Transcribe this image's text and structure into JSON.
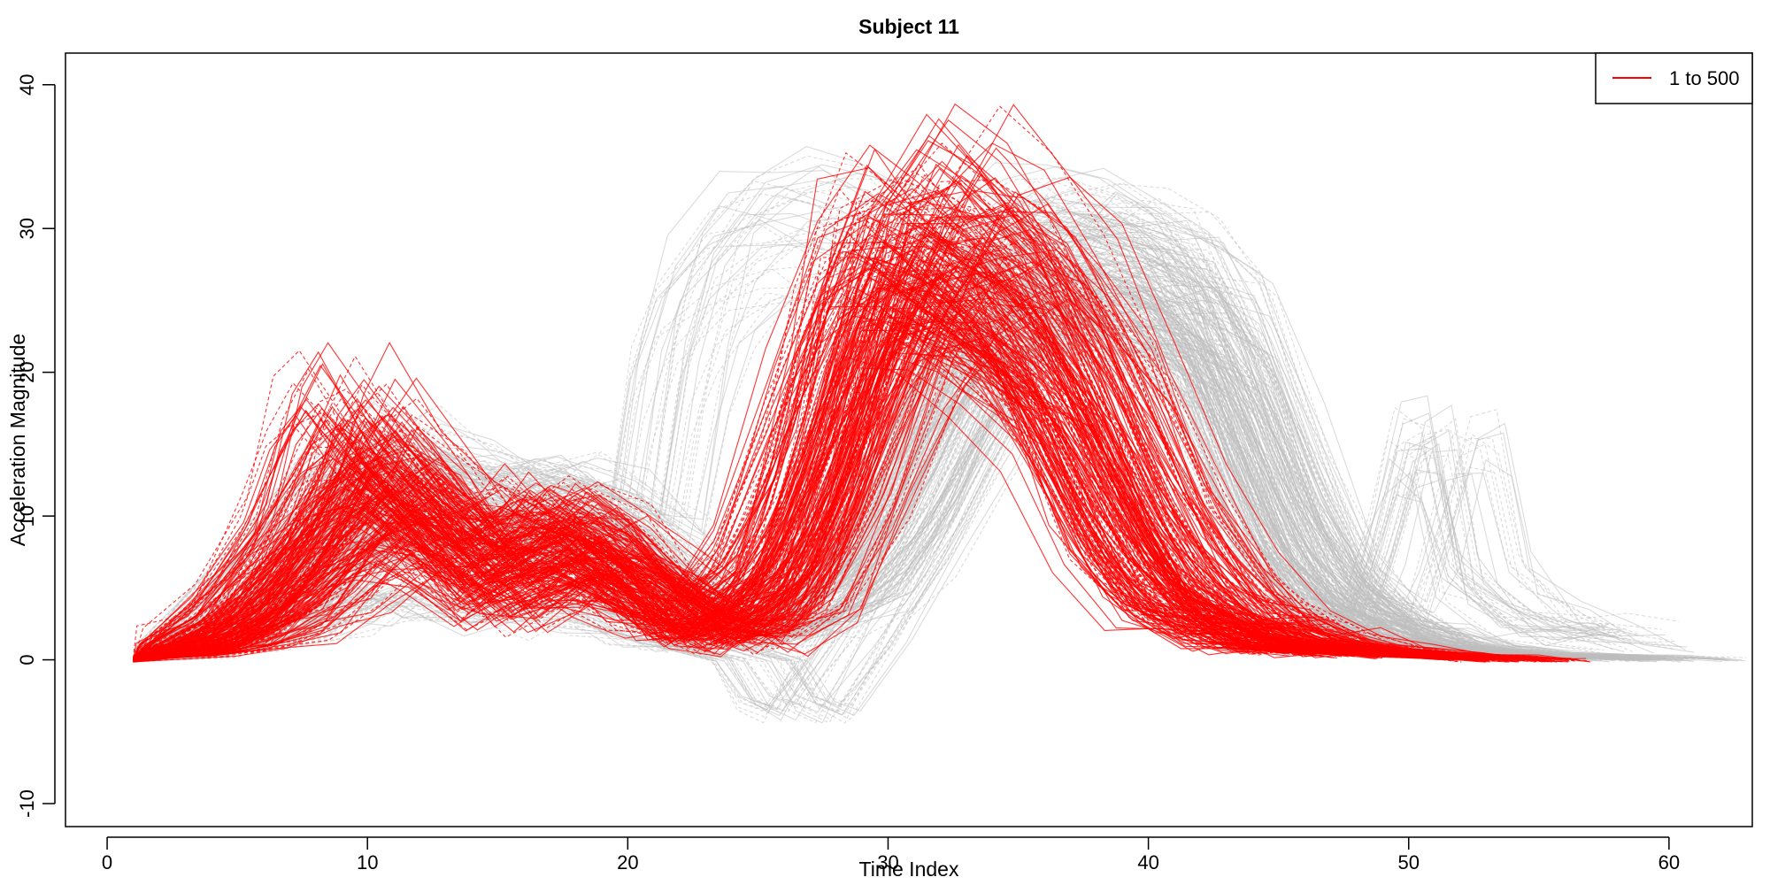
{
  "chart_data": {
    "type": "line",
    "title": "Subject 11",
    "xlabel": "Time Index",
    "ylabel": "Acceleration Magnitude",
    "xlim": [
      -1.6,
      63.2
    ],
    "ylim": [
      -11.6,
      42.2
    ],
    "x_ticks": [
      0,
      10,
      20,
      30,
      40,
      50,
      60
    ],
    "y_ticks": [
      -10,
      0,
      10,
      20,
      30,
      40
    ],
    "grid": false,
    "legend": {
      "placement": "top-right",
      "entries": [
        {
          "label": "1 to 500",
          "color": "#ff0000"
        }
      ]
    },
    "colors": {
      "highlight": "#ff0000",
      "background": "#bebebe"
    },
    "series_groups": [
      {
        "name": "1 to 500",
        "color": "#ff0000",
        "count": 500,
        "representative_curves": [
          {
            "x": [
              1,
              3,
              5,
              7,
              9,
              10,
              12,
              14,
              16,
              17,
              19,
              21,
              22,
              24,
              26,
              28,
              30,
              32,
              34,
              36,
              38,
              40,
              42,
              44,
              46,
              48,
              50,
              52,
              54
            ],
            "y": [
              0,
              0.8,
              2.5,
              6,
              12,
              15,
              11,
              7,
              9,
              10,
              8,
              4,
              2,
              3,
              6,
              15,
              26,
              25,
              22,
              18,
              9,
              4,
              2.5,
              1.5,
              1,
              0.7,
              0.4,
              0.2,
              0
            ]
          },
          {
            "x": [
              1,
              3,
              5,
              7,
              9,
              10,
              12,
              14,
              16,
              17,
              19,
              21,
              22,
              24,
              26,
              28,
              29,
              31,
              33,
              35,
              37,
              39,
              41,
              43,
              45,
              47,
              49
            ],
            "y": [
              0,
              1,
              3,
              8,
              15,
              17,
              13,
              9,
              10,
              11,
              9,
              5,
              3,
              2,
              5,
              18,
              28,
              29,
              26,
              22,
              15,
              8,
              4,
              2,
              1.5,
              0.8,
              0.3
            ]
          },
          {
            "x": [
              1,
              3,
              5,
              7,
              9,
              11,
              13,
              15,
              17,
              19,
              21,
              23,
              25,
              27,
              29,
              31,
              33,
              35,
              37,
              39,
              41,
              43,
              45,
              47,
              49,
              51,
              53
            ],
            "y": [
              0,
              0.5,
              1.5,
              4,
              8,
              11,
              9,
              5,
              7,
              6,
              4,
              2,
              3,
              8,
              18,
              27,
              28,
              25,
              20,
              12,
              6,
              3,
              2,
              1,
              0.6,
              0.3,
              0
            ]
          },
          {
            "x": [
              1,
              3,
              5,
              7,
              8,
              9,
              11,
              13,
              15,
              17,
              19,
              21,
              23,
              25,
              27,
              28,
              30,
              32,
              34,
              36,
              38,
              40,
              42,
              44,
              46,
              48
            ],
            "y": [
              0,
              1.5,
              4,
              10,
              16,
              19,
              14,
              10,
              8,
              11,
              9,
              6,
              4,
              6,
              14,
              22,
              30,
              27,
              24,
              20,
              13,
              6,
              3,
              1.5,
              0.8,
              0.3
            ]
          },
          {
            "x": [
              1,
              3,
              5,
              7,
              9,
              11,
              13,
              15,
              17,
              19,
              21,
              23,
              25,
              27,
              29,
              31,
              33,
              35,
              37,
              39,
              41,
              43,
              45,
              47,
              49,
              51,
              53,
              55
            ],
            "y": [
              0,
              0.4,
              1,
              2.5,
              5,
              8,
              6,
              3,
              5,
              7,
              5,
              2,
              1.5,
              4,
              12,
              22,
              28,
              29,
              26,
              20,
              12,
              6,
              3,
              1.5,
              0.8,
              0.4,
              0.2,
              0
            ]
          },
          {
            "x": [
              1,
              3,
              5,
              7,
              9,
              11,
              13,
              15,
              17,
              19,
              21,
              23,
              25,
              27,
              29,
              31,
              33,
              35,
              37,
              39,
              41,
              43,
              45,
              47
            ],
            "y": [
              0,
              1,
              3,
              7,
              11,
              13,
              10,
              6,
              8,
              9,
              6,
              3,
              8,
              18,
              27,
              30,
              28,
              24,
              17,
              9,
              4,
              2,
              1,
              0.5
            ]
          },
          {
            "x": [
              1,
              3,
              5,
              7,
              9,
              11,
              13,
              15,
              17,
              19,
              21,
              23,
              25,
              27,
              29,
              31,
              33,
              35,
              37,
              39,
              41,
              43,
              45,
              47,
              49
            ],
            "y": [
              0,
              0.7,
              2,
              5,
              9,
              12,
              8,
              4,
              6,
              5,
              3,
              1.5,
              3,
              10,
              20,
              28,
              33,
              30,
              25,
              18,
              10,
              5,
              2,
              1,
              0.4
            ]
          }
        ]
      },
      {
        "name": "",
        "color": "#bebebe",
        "representative_curves": [
          {
            "x": [
              1,
              3,
              5,
              7,
              9,
              11,
              13,
              15,
              17,
              19,
              21,
              23,
              25,
              27,
              29,
              31,
              33,
              35,
              37,
              39,
              41,
              43,
              45,
              47,
              49,
              51,
              53,
              55,
              57,
              59
            ],
            "y": [
              0,
              1,
              2.5,
              5,
              9,
              12,
              10,
              8,
              9,
              8,
              5,
              3,
              2,
              3,
              6,
              12,
              20,
              26,
              28,
              27,
              25,
              18,
              8,
              4,
              2,
              1,
              0.5,
              0.3,
              0.2,
              0
            ]
          },
          {
            "x": [
              1,
              3,
              5,
              7,
              9,
              11,
              13,
              15,
              17,
              19,
              21,
              23,
              25,
              27,
              29,
              31,
              33,
              35,
              37,
              39,
              41,
              43,
              45,
              47,
              49,
              51,
              53,
              55,
              57,
              59,
              61
            ],
            "y": [
              0,
              0.6,
              1.5,
              3,
              6,
              9,
              8,
              7,
              8,
              7,
              5,
              3,
              2,
              2.5,
              5,
              10,
              18,
              25,
              28,
              27,
              26,
              24,
              15,
              6,
              3,
              1.5,
              0.8,
              0.4,
              0.3,
              0.2,
              0
            ]
          },
          {
            "x": [
              1,
              3,
              5,
              7,
              9,
              11,
              13,
              15,
              17,
              19,
              21,
              23,
              25,
              27,
              29,
              31,
              33,
              35,
              37,
              39,
              41,
              43,
              45,
              47,
              49,
              51,
              53,
              55,
              57
            ],
            "y": [
              0,
              1.2,
              3,
              6,
              10,
              13,
              12,
              10,
              11,
              10,
              7,
              4,
              3,
              4,
              8,
              16,
              24,
              27,
              28,
              27,
              26,
              20,
              10,
              5,
              2.5,
              1.2,
              0.6,
              0.3,
              0
            ]
          },
          {
            "x": [
              1,
              5,
              7,
              9,
              11,
              13,
              15,
              17,
              19,
              21,
              22,
              23,
              25,
              27,
              29,
              31,
              33,
              35,
              37,
              39,
              41,
              43,
              45,
              47,
              49,
              51,
              53,
              55
            ],
            "y": [
              0,
              4,
              8,
              12,
              14,
              13,
              12,
              12,
              11,
              9,
              20,
              26,
              30,
              31,
              30,
              28,
              27,
              26,
              25,
              24,
              22,
              16,
              8,
              4,
              2,
              1,
              0.5,
              0
            ]
          },
          {
            "x": [
              1,
              3,
              5,
              7,
              9,
              11,
              13,
              15,
              17,
              19,
              21,
              23,
              25,
              27,
              29,
              31,
              33,
              35,
              37,
              39,
              41,
              43,
              45,
              47,
              49,
              50,
              51,
              52,
              53,
              55,
              57,
              59
            ],
            "y": [
              0,
              0.8,
              2,
              4,
              8,
              11,
              9,
              7,
              8,
              7,
              4,
              2,
              2,
              3,
              6,
              11,
              19,
              24,
              27,
              27,
              26,
              22,
              12,
              5,
              3,
              8,
              15,
              15,
              6,
              3,
              2,
              1.5
            ]
          },
          {
            "x": [
              1,
              3,
              5,
              7,
              9,
              11,
              13,
              15,
              17,
              19,
              21,
              23,
              25,
              27,
              29,
              31,
              33,
              35,
              37,
              39,
              41,
              43,
              45,
              47,
              49,
              51
            ],
            "y": [
              0,
              1.5,
              4,
              9,
              13,
              15,
              13,
              11,
              12,
              11,
              8,
              5,
              4,
              6,
              12,
              20,
              27,
              29,
              29,
              28,
              26,
              22,
              13,
              6,
              2.5,
              1
            ]
          },
          {
            "x": [
              1,
              3,
              5,
              7,
              9,
              11,
              13,
              15,
              17,
              19,
              21,
              23,
              25,
              26,
              27,
              29,
              31,
              33,
              35,
              37,
              39,
              41,
              43,
              45,
              47,
              49,
              51,
              53
            ],
            "y": [
              0,
              0.5,
              1,
              2,
              3,
              5,
              4,
              3,
              4,
              3,
              2,
              1,
              0,
              -3,
              -3.8,
              2,
              8,
              15,
              22,
              26,
              27,
              26,
              20,
              10,
              4,
              2,
              1,
              0.3
            ]
          }
        ]
      }
    ]
  }
}
